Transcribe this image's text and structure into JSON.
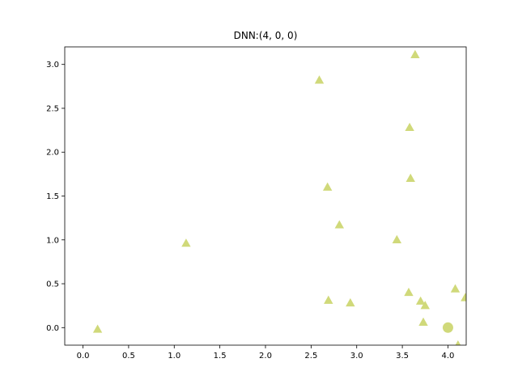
{
  "chart_data": {
    "type": "scatter",
    "title": "DNN:(4, 0, 0)",
    "xlabel": "",
    "ylabel": "",
    "xlim": [
      -0.2,
      4.2
    ],
    "ylim": [
      -0.2,
      3.2
    ],
    "xticks": [
      0.0,
      0.5,
      1.0,
      1.5,
      2.0,
      2.5,
      3.0,
      3.5,
      4.0
    ],
    "xtick_labels": [
      "0.0",
      "0.5",
      "1.0",
      "1.5",
      "2.0",
      "2.5",
      "3.0",
      "3.5",
      "4.0"
    ],
    "yticks": [
      0.0,
      0.5,
      1.0,
      1.5,
      2.0,
      2.5,
      3.0
    ],
    "ytick_labels": [
      "0.0",
      "0.5",
      "1.0",
      "1.5",
      "2.0",
      "2.5",
      "3.0"
    ],
    "grid": false,
    "color": "#d0d97a",
    "series": [
      {
        "marker": "triangle",
        "points": [
          [
            0.16,
            -0.02
          ],
          [
            1.13,
            0.96
          ],
          [
            2.59,
            2.82
          ],
          [
            2.68,
            1.6
          ],
          [
            2.69,
            0.31
          ],
          [
            2.81,
            1.17
          ],
          [
            2.93,
            0.28
          ],
          [
            3.44,
            1.0
          ],
          [
            3.57,
            0.4
          ],
          [
            3.58,
            2.28
          ],
          [
            3.59,
            1.7
          ],
          [
            3.64,
            3.11
          ],
          [
            3.7,
            0.3
          ],
          [
            3.73,
            0.06
          ],
          [
            3.75,
            0.25
          ],
          [
            4.08,
            0.44
          ],
          [
            4.11,
            -0.2
          ],
          [
            4.19,
            0.34
          ]
        ]
      },
      {
        "marker": "circle",
        "points": [
          [
            4.0,
            0.0
          ]
        ]
      }
    ]
  }
}
